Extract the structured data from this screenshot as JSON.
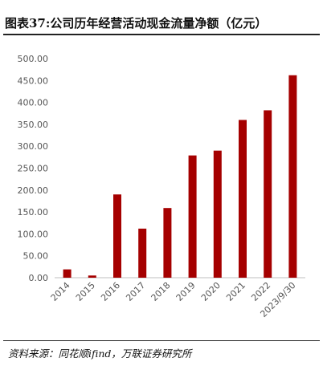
{
  "header": {
    "title": "图表37:公司历年经营活动现金流量净额（亿元）"
  },
  "footer": {
    "source": "资料来源：同花顺ifind，万联证券研究所"
  },
  "chart_data": {
    "type": "bar",
    "title": "图表37:公司历年经营活动现金流量净额（亿元）",
    "xlabel": "",
    "ylabel": "",
    "categories": [
      "2014",
      "2015",
      "2016",
      "2017",
      "2018",
      "2019",
      "2020",
      "2021",
      "2022",
      "2023/9/30"
    ],
    "values": [
      19,
      5,
      190,
      112,
      159,
      279,
      290,
      360,
      382,
      462
    ],
    "ylim": [
      0,
      500
    ],
    "yticks": [
      "0.00",
      "50.00",
      "100.00",
      "150.00",
      "200.00",
      "250.00",
      "300.00",
      "350.00",
      "400.00",
      "450.00",
      "500.00"
    ],
    "bar_color": "#a50000",
    "grid": false,
    "legend": "none"
  }
}
